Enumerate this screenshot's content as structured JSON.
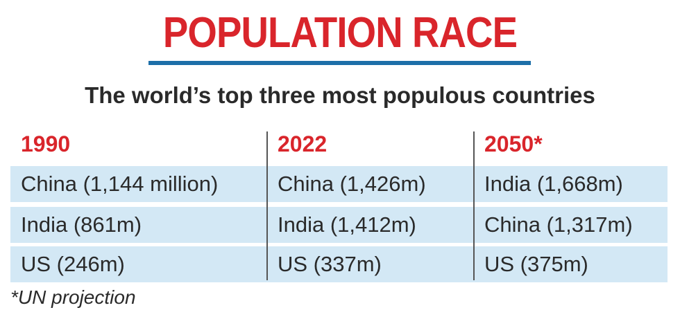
{
  "title": "POPULATION RACE",
  "subtitle": "The world’s top three most populous countries",
  "columns": [
    {
      "year": "1990",
      "entries": [
        "China (1,144 million)",
        "India (861m)",
        "US (246m)"
      ]
    },
    {
      "year": "2022",
      "entries": [
        "China (1,426m)",
        "India (1,412m)",
        "US (337m)"
      ]
    },
    {
      "year": "2050*",
      "entries": [
        "India (1,668m)",
        "China (1,317m)",
        "US (375m)"
      ]
    }
  ],
  "footnote": "*UN projection",
  "colors": {
    "title": "#d9252b",
    "underline": "#1d6fa8",
    "year": "#d9252b",
    "row_shade": "#d3e8f5"
  }
}
